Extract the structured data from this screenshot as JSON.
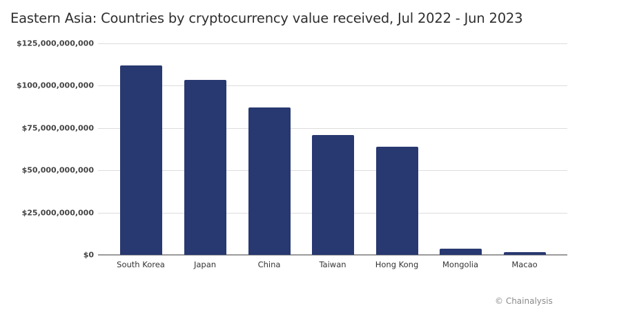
{
  "chart_data": {
    "type": "bar",
    "title": "Eastern Asia: Countries by cryptocurrency value received, Jul 2022 - Jun 2023",
    "xlabel": "",
    "ylabel": "",
    "categories": [
      "South Korea",
      "Japan",
      "China",
      "Taiwan",
      "Hong Kong",
      "Mongolia",
      "Macao"
    ],
    "values": [
      112000000000,
      103500000000,
      87000000000,
      71000000000,
      64000000000,
      3500000000,
      1500000000
    ],
    "ylim": [
      0,
      125000000000
    ],
    "yticks": [
      0,
      25000000000,
      50000000000,
      75000000000,
      100000000000,
      125000000000
    ],
    "ytick_labels": [
      "$0",
      "$25,000,000,000",
      "$50,000,000,000",
      "$75,000,000,000",
      "$100,000,000,000",
      "$125,000,000,000"
    ],
    "grid": true,
    "legend": null,
    "bar_color": "#283870",
    "annotation": "© Chainalysis"
  },
  "title": "Eastern Asia: Countries by cryptocurrency value received, Jul 2022 - Jun 2023",
  "credit": "© Chainalysis"
}
